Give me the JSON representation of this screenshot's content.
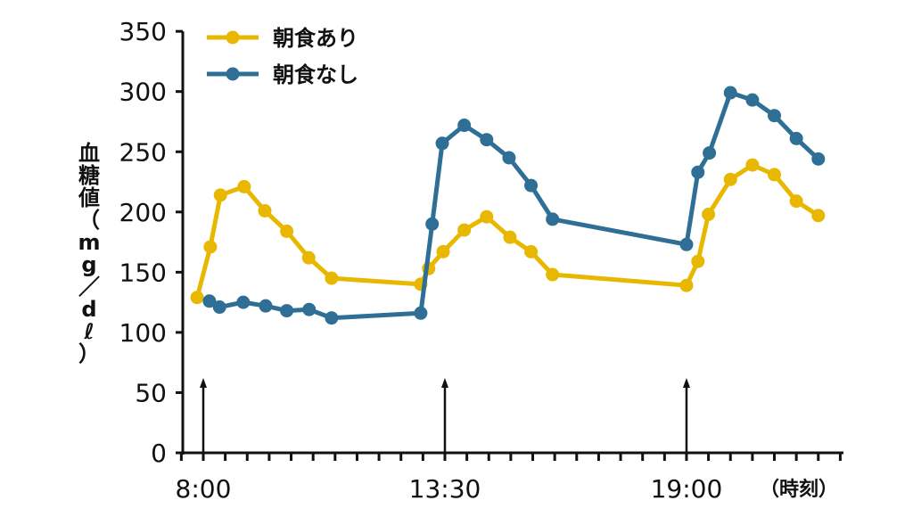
{
  "chart_data": {
    "type": "line",
    "title": "",
    "ylabel": "血糖値（mg／dℓ）",
    "xlabel": "（時刻）",
    "ylim": [
      0,
      350
    ],
    "yticks": [
      0,
      50,
      100,
      150,
      200,
      250,
      300,
      350
    ],
    "xlim_hours": [
      7.35,
      22.6
    ],
    "xtick_interval_hours": 0.5,
    "xtick_labels": [
      {
        "label": "8:00",
        "hour": 8.0
      },
      {
        "label": "13:30",
        "hour": 13.5
      },
      {
        "label": "19:00",
        "hour": 19.0
      }
    ],
    "meal_arrows_hours": [
      8.0,
      13.5,
      19.0
    ],
    "legend_position": "top-left",
    "grid": false,
    "series": [
      {
        "name": "朝食あり",
        "color": "#e8b800",
        "x": [
          7.86,
          8.16,
          8.39,
          8.93,
          9.4,
          9.9,
          10.4,
          10.92,
          12.95,
          13.13,
          13.46,
          13.94,
          14.45,
          14.98,
          15.46,
          15.95,
          19.0,
          19.26,
          19.5,
          20.0,
          20.5,
          21.0,
          21.5,
          22.0
        ],
        "values": [
          129,
          171,
          214,
          221,
          201,
          184,
          162,
          145,
          140,
          153,
          167,
          185,
          196,
          179,
          167,
          148,
          139,
          159,
          198,
          227,
          239,
          231,
          209,
          197
        ]
      },
      {
        "name": "朝食なし",
        "color": "#2f6f95",
        "x": [
          8.14,
          8.37,
          8.91,
          9.42,
          9.9,
          10.41,
          10.92,
          12.95,
          13.21,
          13.44,
          13.94,
          14.45,
          14.96,
          15.46,
          15.95,
          19.0,
          19.26,
          19.52,
          20.0,
          20.5,
          21.0,
          21.5,
          22.0
        ],
        "values": [
          126,
          121,
          125,
          122,
          118,
          119,
          112,
          116,
          190,
          257,
          272,
          260,
          245,
          222,
          194,
          173,
          233,
          249,
          299,
          293,
          280,
          261,
          244
        ]
      }
    ]
  }
}
